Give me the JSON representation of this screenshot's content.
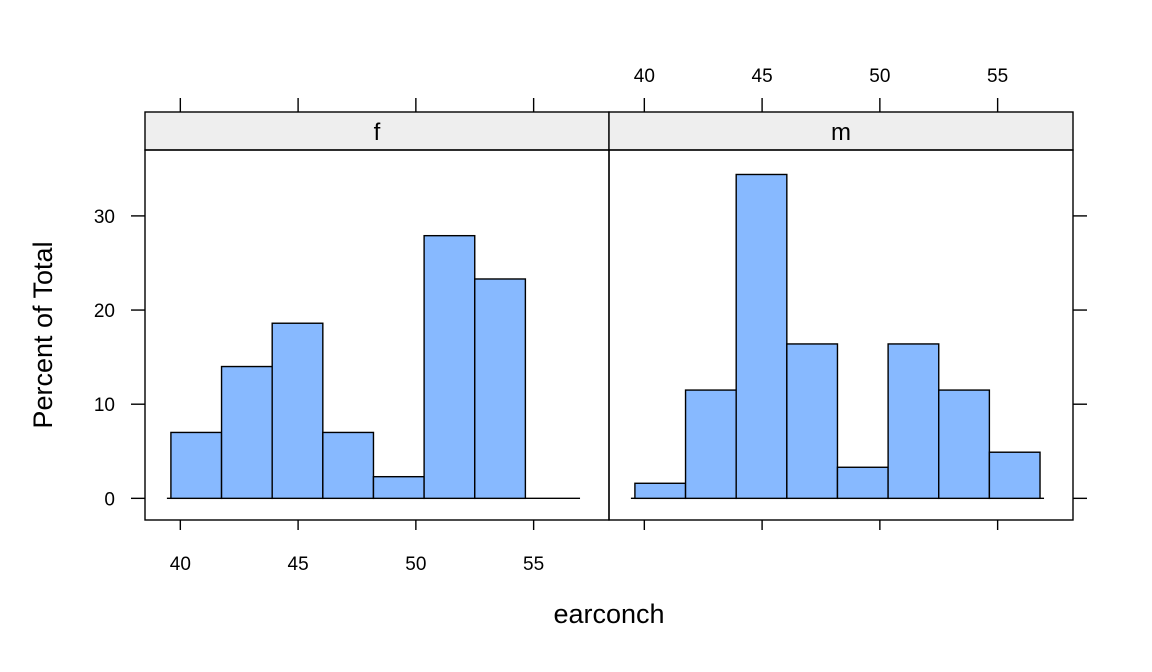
{
  "chart_data": {
    "type": "bar",
    "xlabel": "earconch",
    "ylabel": "Percent of Total",
    "xlim": [
      38.5,
      58.2
    ],
    "ylim": [
      -2.3,
      37.0
    ],
    "x_ticks": [
      "40",
      "45",
      "50",
      "55"
    ],
    "y_ticks": [
      "0",
      "10",
      "20",
      "30"
    ],
    "bin_edges": [
      39.6,
      41.75,
      43.9,
      46.05,
      48.2,
      50.35,
      52.5,
      54.65,
      56.8
    ],
    "colors": {
      "bar_fill": "#87b9ff",
      "strip_fill": "#eeeeee"
    },
    "panels": [
      {
        "strip": "f",
        "values": [
          7.0,
          14.0,
          18.6,
          7.0,
          2.3,
          27.9,
          23.3,
          0.0
        ]
      },
      {
        "strip": "m",
        "values": [
          1.6,
          11.5,
          34.4,
          16.4,
          3.3,
          16.4,
          11.5,
          4.9
        ]
      }
    ]
  }
}
